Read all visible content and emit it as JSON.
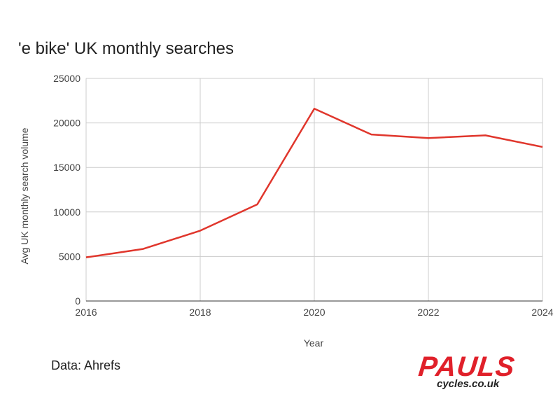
{
  "chart_data": {
    "type": "line",
    "title": "'e bike' UK monthly searches",
    "xlabel": "Year",
    "ylabel": "Avg UK monthly search volume",
    "x": [
      2016,
      2017,
      2018,
      2019,
      2020,
      2021,
      2022,
      2023,
      2024
    ],
    "series": [
      {
        "values": [
          4900,
          5850,
          7900,
          10850,
          21600,
          18700,
          18300,
          18600,
          17300
        ]
      }
    ],
    "xlim": [
      2016,
      2024
    ],
    "ylim": [
      0,
      25000
    ],
    "x_ticks": [
      "2016",
      "2018",
      "2020",
      "2022",
      "2024"
    ],
    "y_ticks": [
      "0",
      "5000",
      "10000",
      "15000",
      "20000",
      "25000"
    ],
    "x_tick_values": [
      2016,
      2018,
      2020,
      2022,
      2024
    ],
    "y_tick_values": [
      0,
      5000,
      10000,
      15000,
      20000,
      25000
    ],
    "grid": true,
    "line_color": "#e0362c",
    "grid_color": "#cccccc"
  },
  "source_label": "Data: Ahrefs",
  "logo": {
    "main": "PAULS",
    "sub": "cycles.co.uk",
    "color": "#e0202a"
  }
}
